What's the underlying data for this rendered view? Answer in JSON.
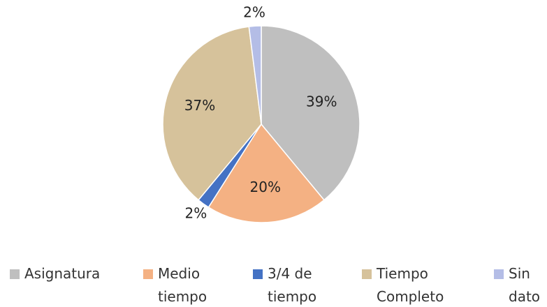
{
  "chart_data": {
    "type": "pie",
    "categories": [
      "Asignatura",
      "Medio tiempo",
      "3/4 de tiempo",
      "Tiempo Completo",
      "Sin dato"
    ],
    "values": [
      39,
      20,
      2,
      37,
      2
    ],
    "value_labels": [
      "39%",
      "20%",
      "2%",
      "37%",
      "2%"
    ],
    "colors": [
      "#bfbfbf",
      "#f4b183",
      "#4472c4",
      "#d6c29b",
      "#b4bde6"
    ],
    "legend": "bottom"
  }
}
